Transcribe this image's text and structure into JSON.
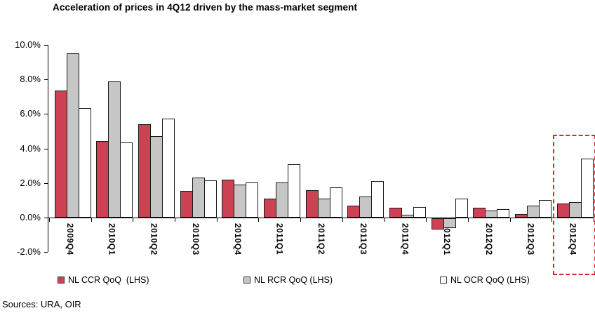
{
  "sources": "Sources: URA, OIR",
  "chart_data": {
    "type": "bar",
    "title": "Acceleration of prices in 4Q12 driven by the mass-market segment",
    "xlabel": "",
    "ylabel": "",
    "categories": [
      "2009Q4",
      "2010Q1",
      "2010Q2",
      "2010Q3",
      "2010Q4",
      "2011Q1",
      "2011Q2",
      "2011Q3",
      "2011Q4",
      "2012Q1",
      "2012Q2",
      "2012Q3",
      "2012Q4"
    ],
    "series": [
      {
        "name": "NL CCR QoQ  (LHS)",
        "color": "#cc4154",
        "values": [
          7.35,
          4.45,
          5.4,
          1.55,
          2.2,
          1.1,
          1.6,
          0.7,
          0.55,
          -0.65,
          0.55,
          0.2,
          0.8
        ]
      },
      {
        "name": "NL RCR QoQ (LHS)",
        "color": "#c6c6c6",
        "values": [
          9.5,
          7.9,
          4.7,
          2.3,
          1.9,
          2.05,
          1.1,
          1.2,
          0.15,
          -0.55,
          0.4,
          0.7,
          0.9
        ]
      },
      {
        "name": "NL OCR QoQ (LHS)",
        "color": "#ffffff",
        "values": [
          6.35,
          4.35,
          5.75,
          2.15,
          2.05,
          3.1,
          1.75,
          2.1,
          0.6,
          1.1,
          0.5,
          1.0,
          3.4
        ]
      }
    ],
    "ylim": [
      -2,
      10
    ],
    "ytick_labels": [
      "10.0%",
      "8.0%",
      "6.0%",
      "4.0%",
      "2.0%",
      "0.0%",
      "-2.0%"
    ],
    "grid": false,
    "legend_position": "bottom",
    "annotation": {
      "type": "dashed-box",
      "category": "2012Q4",
      "color": "#dd2429"
    }
  }
}
